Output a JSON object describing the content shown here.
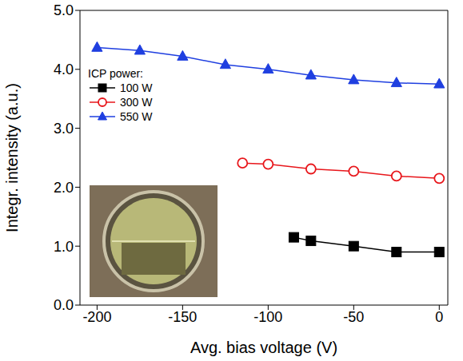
{
  "chart_data": {
    "type": "line",
    "x_label": "Avg. bias voltage (V)",
    "y_label": "Integr. intensity (a.u.)",
    "legend_title": "ICP power:",
    "legend": "upper left",
    "grid": false,
    "xlim": [
      -210,
      5
    ],
    "xticks": [
      -200,
      -150,
      -100,
      -50,
      0
    ],
    "ylim": [
      0,
      5
    ],
    "yticks": [
      {
        "value": 0,
        "label": "0.0"
      },
      {
        "value": 1,
        "label": "1.0"
      },
      {
        "value": 2,
        "label": "2.0"
      },
      {
        "value": 3,
        "label": "3.0"
      },
      {
        "value": 4,
        "label": "4.0"
      },
      {
        "value": 5,
        "label": "5.0"
      }
    ],
    "series": [
      {
        "name": "100 W",
        "color": "#000000",
        "marker": "square",
        "line_style": "solid",
        "x": [
          -85,
          -75,
          -50,
          -25,
          0
        ],
        "values": [
          1.15,
          1.09,
          1.0,
          0.9,
          0.9
        ]
      },
      {
        "name": "300 W",
        "color": "#e8161b",
        "marker": "open_circle",
        "line_style": "solid",
        "x": [
          -115,
          -100,
          -75,
          -50,
          -25,
          0
        ],
        "values": [
          2.41,
          2.39,
          2.31,
          2.27,
          2.19,
          2.15
        ]
      },
      {
        "name": "550 W",
        "color": "#1f3fe0",
        "marker": "triangle",
        "line_style": "solid",
        "x": [
          -200,
          -175,
          -150,
          -125,
          -100,
          -75,
          -50,
          -25,
          0
        ],
        "values": [
          4.37,
          4.32,
          4.22,
          4.08,
          4.0,
          3.9,
          3.82,
          3.77,
          3.75
        ]
      }
    ]
  }
}
